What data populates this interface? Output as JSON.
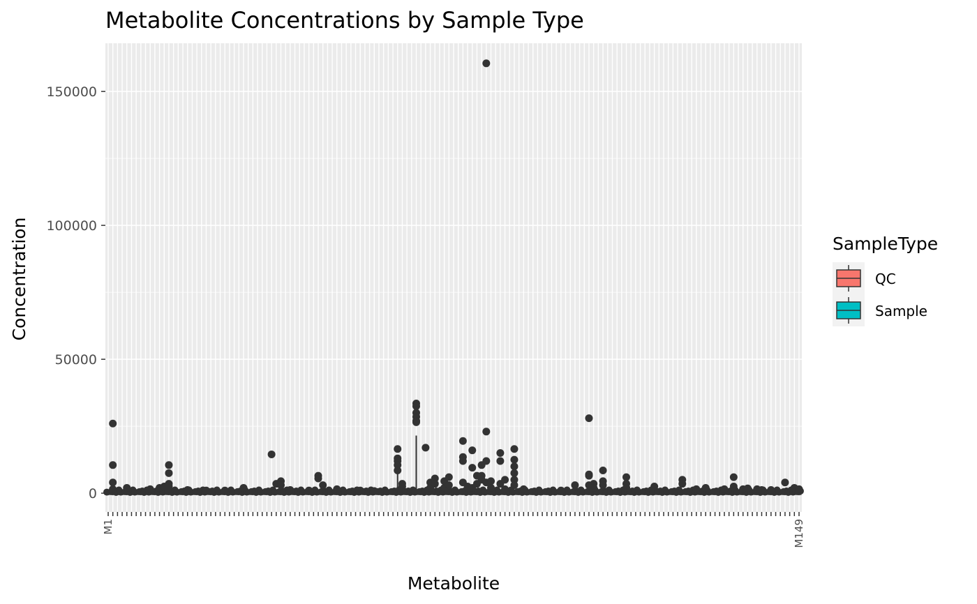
{
  "chart_data": {
    "type": "boxplot",
    "title": "Metabolite Concentrations by Sample Type",
    "xlabel": "Metabolite",
    "ylabel": "Concentration",
    "ylim": [
      -7000,
      168000
    ],
    "yticks": [
      0,
      50000,
      100000,
      150000
    ],
    "ytick_labels": [
      "0",
      "50000",
      "100000",
      "150000"
    ],
    "grid": true,
    "legend": {
      "title": "SampleType",
      "placement": "right",
      "entries": [
        {
          "name": "QC",
          "color": "#F8766D"
        },
        {
          "name": "Sample",
          "color": "#00BFC4"
        }
      ]
    },
    "x_categories_pattern": "M1 … M149",
    "x_count": 149,
    "x_tick_labels": [
      "M1",
      "M149"
    ],
    "colors": {
      "panel": "#EBEBEB",
      "grid": "#FFFFFF",
      "points": "#333333"
    },
    "outliers": [
      {
        "m": 2,
        "y": [
          26000,
          10500,
          4000,
          1500
        ]
      },
      {
        "m": 5,
        "y": [
          2000
        ]
      },
      {
        "m": 10,
        "y": [
          1500
        ]
      },
      {
        "m": 12,
        "y": [
          2000
        ]
      },
      {
        "m": 13,
        "y": [
          2500
        ]
      },
      {
        "m": 14,
        "y": [
          10500,
          7500,
          3500,
          2500
        ]
      },
      {
        "m": 18,
        "y": [
          1200
        ]
      },
      {
        "m": 22,
        "y": [
          1000
        ]
      },
      {
        "m": 26,
        "y": [
          1000
        ]
      },
      {
        "m": 30,
        "y": [
          2000
        ]
      },
      {
        "m": 36,
        "y": [
          14500
        ]
      },
      {
        "m": 37,
        "y": [
          3500
        ]
      },
      {
        "m": 38,
        "y": [
          4500,
          3000
        ]
      },
      {
        "m": 40,
        "y": [
          1200
        ]
      },
      {
        "m": 44,
        "y": [
          1000
        ]
      },
      {
        "m": 46,
        "y": [
          6500,
          5500
        ]
      },
      {
        "m": 47,
        "y": [
          3000
        ]
      },
      {
        "m": 50,
        "y": [
          1500
        ]
      },
      {
        "m": 55,
        "y": [
          1000
        ]
      },
      {
        "m": 58,
        "y": [
          800
        ]
      },
      {
        "m": 63,
        "y": [
          16500,
          13000,
          12000,
          10500,
          8500
        ]
      },
      {
        "m": 64,
        "y": [
          3500,
          2500
        ]
      },
      {
        "m": 67,
        "y": [
          33500,
          32500,
          30000,
          28500,
          27000,
          26500
        ]
      },
      {
        "m": 69,
        "y": [
          17000
        ]
      },
      {
        "m": 70,
        "y": [
          4000,
          2000
        ]
      },
      {
        "m": 71,
        "y": [
          5500,
          3500
        ]
      },
      {
        "m": 73,
        "y": [
          4500,
          2000
        ]
      },
      {
        "m": 74,
        "y": [
          6000,
          3000
        ]
      },
      {
        "m": 77,
        "y": [
          19500,
          13500,
          12000,
          4000
        ]
      },
      {
        "m": 78,
        "y": [
          2500
        ]
      },
      {
        "m": 79,
        "y": [
          16000,
          9500,
          2000
        ]
      },
      {
        "m": 80,
        "y": [
          6500,
          3500
        ]
      },
      {
        "m": 81,
        "y": [
          10500,
          6500,
          5000
        ]
      },
      {
        "m": 82,
        "y": [
          160500,
          23000,
          12000,
          4000
        ]
      },
      {
        "m": 83,
        "y": [
          4500,
          2000
        ]
      },
      {
        "m": 85,
        "y": [
          15000,
          12000,
          3500
        ]
      },
      {
        "m": 86,
        "y": [
          5000,
          1500
        ]
      },
      {
        "m": 88,
        "y": [
          16500,
          12500,
          10000,
          7500,
          5000,
          3000
        ]
      },
      {
        "m": 90,
        "y": [
          1500
        ]
      },
      {
        "m": 98,
        "y": [
          1000
        ]
      },
      {
        "m": 101,
        "y": [
          3000
        ]
      },
      {
        "m": 104,
        "y": [
          28000,
          7000,
          6500,
          3000
        ]
      },
      {
        "m": 105,
        "y": [
          3500,
          2000
        ]
      },
      {
        "m": 107,
        "y": [
          8500,
          4500,
          3000
        ]
      },
      {
        "m": 112,
        "y": [
          6000,
          3500,
          2000
        ]
      },
      {
        "m": 118,
        "y": [
          2500
        ]
      },
      {
        "m": 124,
        "y": [
          5000,
          3500
        ]
      },
      {
        "m": 127,
        "y": [
          1500
        ]
      },
      {
        "m": 129,
        "y": [
          2000
        ]
      },
      {
        "m": 133,
        "y": [
          1500
        ]
      },
      {
        "m": 135,
        "y": [
          6000,
          2500
        ]
      },
      {
        "m": 137,
        "y": [
          1500
        ]
      },
      {
        "m": 138,
        "y": [
          1800
        ]
      },
      {
        "m": 140,
        "y": [
          1500
        ]
      },
      {
        "m": 141,
        "y": [
          1200
        ]
      },
      {
        "m": 143,
        "y": [
          1200
        ]
      },
      {
        "m": 146,
        "y": [
          4000
        ]
      },
      {
        "m": 148,
        "y": [
          2000
        ]
      },
      {
        "m": 149,
        "y": [
          1500
        ]
      }
    ]
  }
}
